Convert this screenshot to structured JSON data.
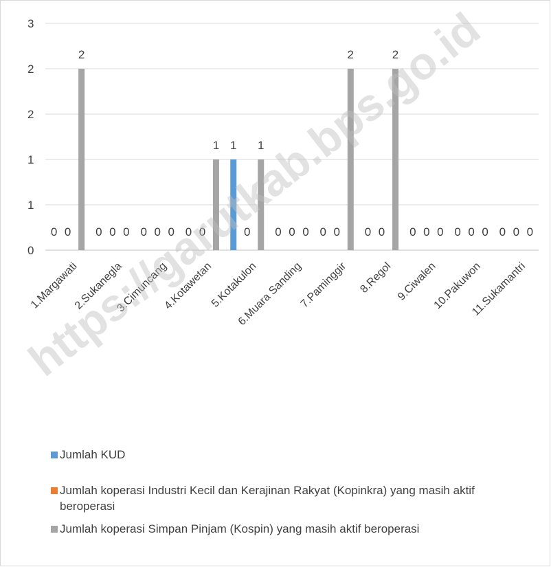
{
  "chart_data": {
    "type": "bar",
    "categories": [
      "1.Margawati",
      "2.Sukanegla",
      "3.Cimuncang",
      "4.Kotawetan",
      "5.Kotakulon",
      "6.Muara Sanding",
      "7.Paminggir",
      "8.Regol",
      "9.Ciwalen",
      "10.Pakuwon",
      "11.Sukamantri"
    ],
    "series": [
      {
        "name": "Jumlah KUD",
        "color": "#5b9bd5",
        "values": [
          0,
          0,
          0,
          0,
          1,
          0,
          0,
          0,
          0,
          0,
          0
        ]
      },
      {
        "name": "Jumlah koperasi Industri Kecil dan Kerajinan Rakyat (Kopinkra) yang masih aktif beroperasi",
        "color": "#ed7d31",
        "values": [
          0,
          0,
          0,
          0,
          0,
          0,
          0,
          0,
          0,
          0,
          0
        ]
      },
      {
        "name": "Jumlah koperasi Simpan Pinjam (Kospin) yang masih aktif  beroperasi",
        "color": "#a5a5a5",
        "values": [
          2,
          0,
          0,
          1,
          1,
          0,
          2,
          2,
          0,
          0,
          0
        ]
      }
    ],
    "ylim": [
      0,
      2.5
    ],
    "yticks": [
      0,
      0.5,
      1,
      1.5,
      2,
      2.5
    ],
    "ytick_labels": [
      "0",
      "1",
      "1",
      "2",
      "2",
      "3"
    ],
    "legend_position": "bottom",
    "grid": true
  },
  "legend": {
    "kud": "Jumlah KUD",
    "kopinkra_line1": "Jumlah koperasi Industri Kecil dan Kerajinan Rakyat (Kopinkra) yang masih aktif",
    "kopinkra_line2": "beroperasi",
    "kospin": "Jumlah koperasi Simpan Pinjam (Kospin) yang masih aktif  beroperasi"
  },
  "watermark": "https://garutkab.bps.go.id"
}
